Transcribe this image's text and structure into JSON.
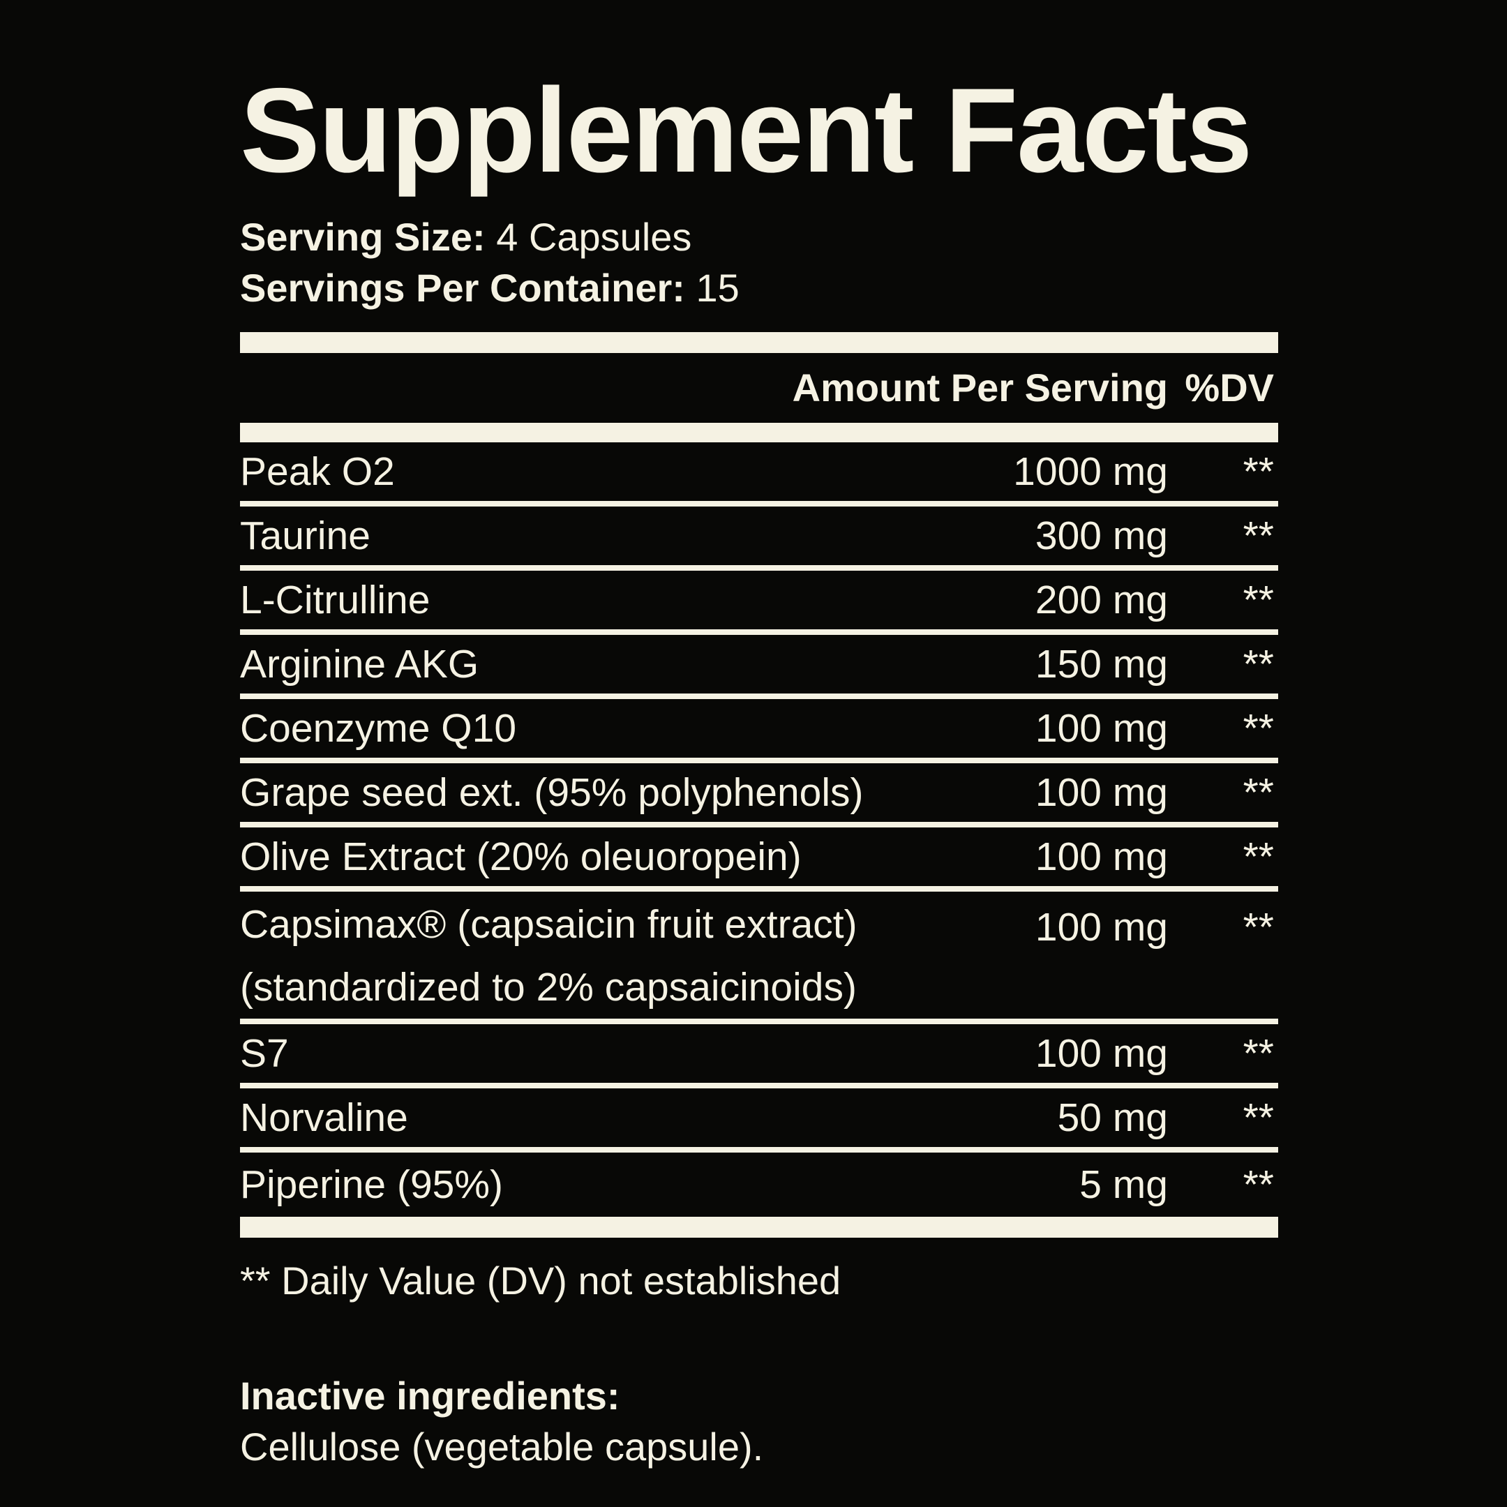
{
  "label": {
    "title": "Supplement Facts",
    "serving": {
      "size_label": "Serving Size:",
      "size_value": "4 Capsules",
      "per_container_label": "Servings Per Container:",
      "per_container_value": "15"
    },
    "header": {
      "amount": "Amount Per Serving",
      "dv": "%DV"
    },
    "rows": [
      {
        "name": "Peak O2",
        "amount": "1000 mg",
        "dv": "**"
      },
      {
        "name": "Taurine",
        "amount": "300 mg",
        "dv": "**"
      },
      {
        "name": "L-Citrulline",
        "amount": "200 mg",
        "dv": "**"
      },
      {
        "name": "Arginine AKG",
        "amount": "150 mg",
        "dv": "**"
      },
      {
        "name": "Coenzyme Q10",
        "amount": "100 mg",
        "dv": "**"
      },
      {
        "name": "Grape seed ext. (95% polyphenols)",
        "amount": "100 mg",
        "dv": "**"
      },
      {
        "name": "Olive Extract (20% oleuoropein)",
        "amount": "100 mg",
        "dv": "**"
      },
      {
        "name": "Capsimax® (capsaicin fruit extract)",
        "name_line2": "(standardized to 2% capsaicinoids)",
        "amount": "100 mg",
        "dv": "**"
      },
      {
        "name": "S7",
        "amount": "100 mg",
        "dv": "**"
      },
      {
        "name": "Norvaline",
        "amount": "50 mg",
        "dv": "**"
      },
      {
        "name": "Piperine (95%)",
        "amount": "5 mg",
        "dv": "**"
      }
    ],
    "footnote": "** Daily Value (DV) not established",
    "inactive": {
      "label": "Inactive ingredients:",
      "value": "Cellulose (vegetable capsule)."
    },
    "colors": {
      "foreground": "#F5F2E3",
      "background": "#080806"
    }
  }
}
